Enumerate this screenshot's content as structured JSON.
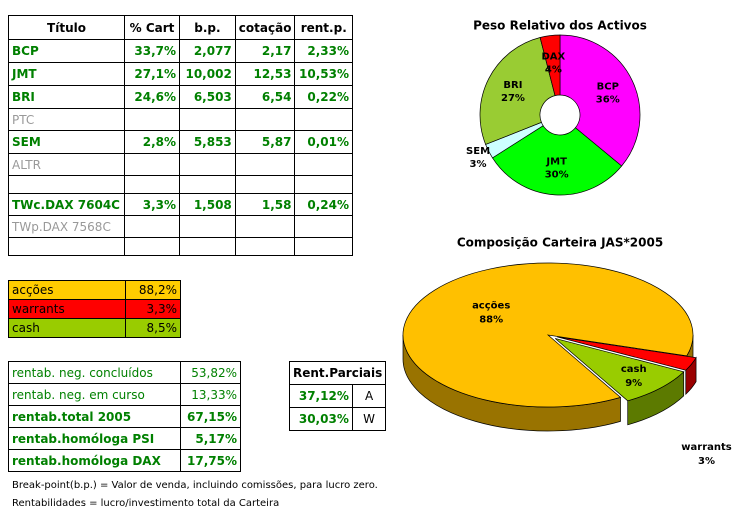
{
  "holdings_table": {
    "header": [
      "Título",
      "% Cart",
      "b.p.",
      "cotação",
      "rent.p."
    ],
    "rows": [
      {
        "title": "BCP",
        "cart": "33,7%",
        "bp": "2,077",
        "price": "2,17",
        "rent": "2,33%"
      },
      {
        "title": "JMT",
        "cart": "27,1%",
        "bp": "10,002",
        "price": "12,53",
        "rent": "10,53%"
      },
      {
        "title": "BRI",
        "cart": "24,6%",
        "bp": "6,503",
        "price": "6,54",
        "rent": "0,22%"
      },
      {
        "title": "PTC"
      },
      {
        "title": "SEM",
        "cart": "2,8%",
        "bp": "5,853",
        "price": "5,87",
        "rent": "0,01%"
      },
      {
        "title": "ALTR"
      },
      {
        "title": "TWc.DAX 7604C",
        "cart": "3,3%",
        "bp": "1,508",
        "price": "1,58",
        "rent": "0,24%"
      },
      {
        "title": "TWp.DAX 7568C"
      }
    ]
  },
  "allocation_table": {
    "rows": [
      [
        "acções",
        "88,2%"
      ],
      [
        "warrants",
        "3,3%"
      ],
      [
        "cash",
        "8,5%"
      ]
    ]
  },
  "returns_table": {
    "rows": [
      [
        "rentab. neg. concluídos",
        "53,82%"
      ],
      [
        "rentab. neg. em curso",
        "13,33%"
      ],
      [
        "rentab.total 2005",
        "67,15%"
      ],
      [
        "rentab.homóloga PSI",
        "5,17%"
      ],
      [
        "rentab.homóloga DAX",
        "17,75%"
      ]
    ]
  },
  "partials_table": {
    "title": "Rent.Parciais",
    "rows": [
      [
        "37,12%",
        "A"
      ],
      [
        "30,03%",
        "W"
      ]
    ]
  },
  "notes": [
    "Break-point(b.p.) = Valor de venda, incluindo comissões, para lucro zero.",
    "Rentabilidades = lucro/investimento total da Carteira"
  ],
  "chart_data": [
    {
      "type": "donut",
      "title": "Peso Relativo dos Activos",
      "categories": [
        "BCP",
        "JMT",
        "SEM",
        "BRI",
        "DAX"
      ],
      "values": [
        36,
        30,
        3,
        27,
        4
      ],
      "value_labels": [
        "36%",
        "30%",
        "3%",
        "27%",
        "4%"
      ],
      "colors": [
        "#ff00ff",
        "#00ff00",
        "#ccffff",
        "#99cc33",
        "#ff0000"
      ]
    },
    {
      "type": "pie",
      "three_d": true,
      "title": "Composição Carteira JAS*2005",
      "categories": [
        "acções",
        "warrants",
        "cash"
      ],
      "values": [
        88,
        3,
        9
      ],
      "value_labels": [
        "88%",
        "3%",
        "9%"
      ],
      "colors": [
        "#ffc000",
        "#ff0000",
        "#99cc00"
      ]
    }
  ]
}
